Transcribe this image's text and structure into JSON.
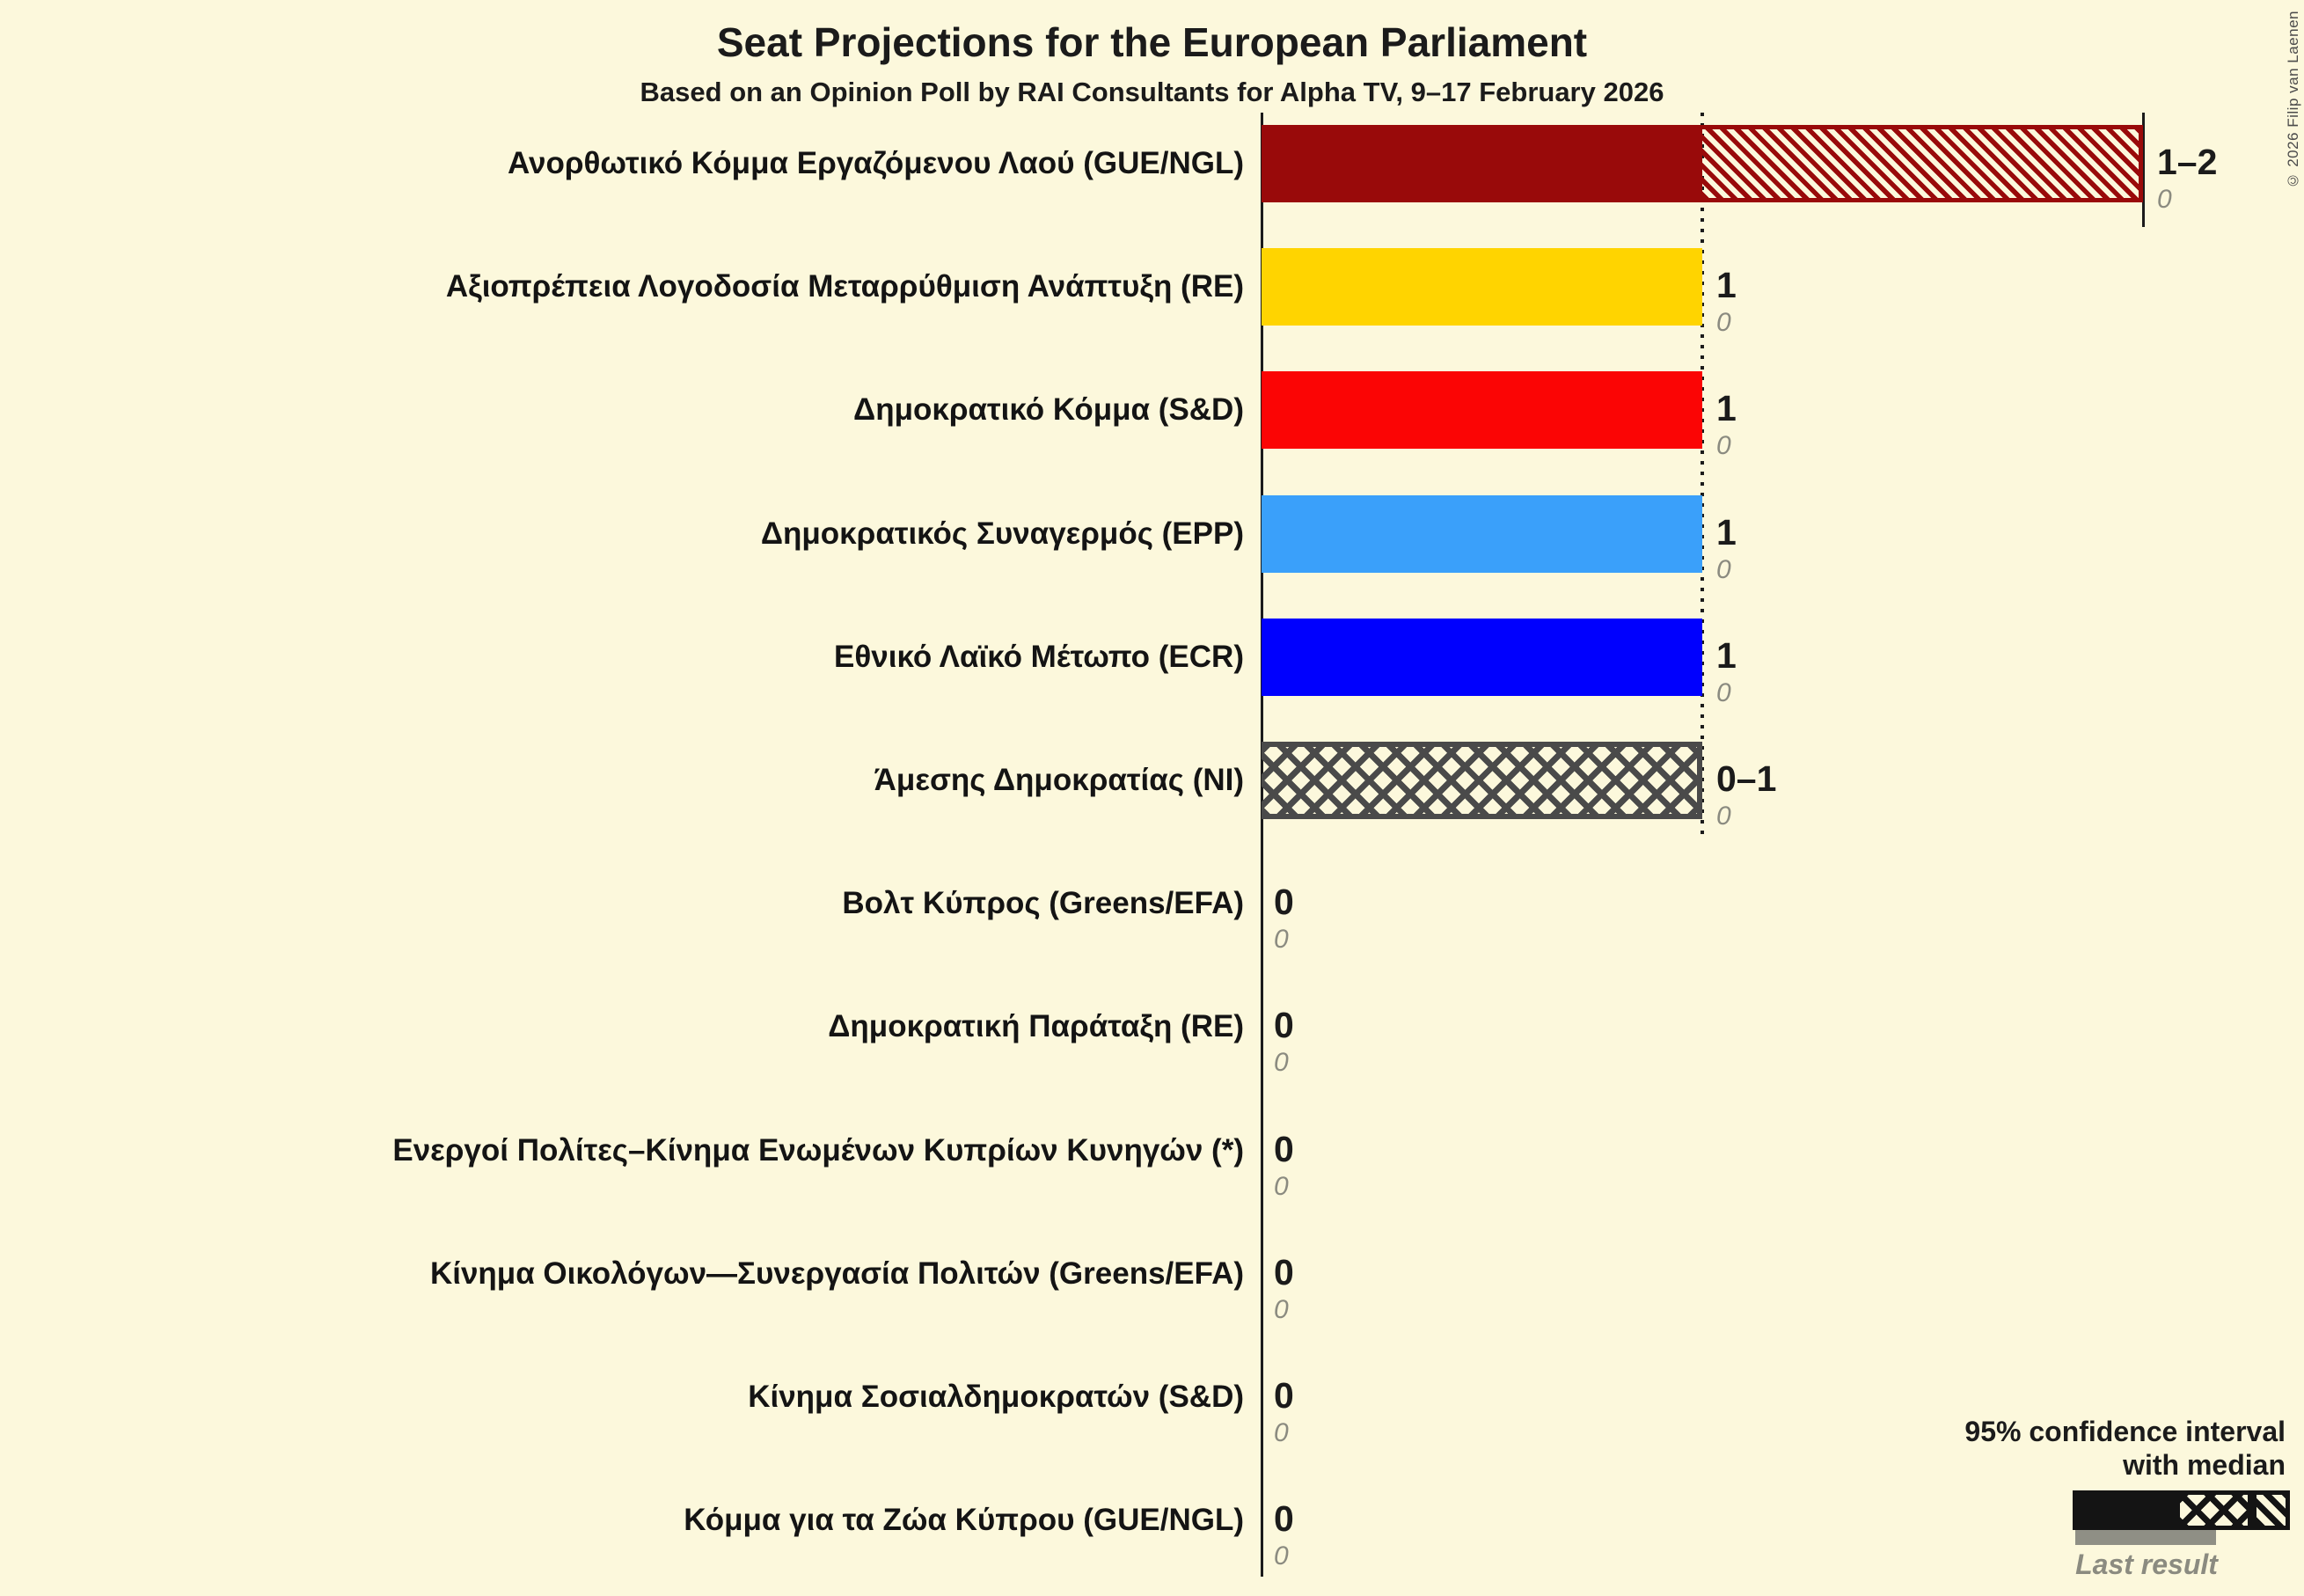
{
  "title": "Seat Projections for the European Parliament",
  "subtitle": "Based on an Opinion Poll by RAI Consultants for Alpha TV, 9–17 February 2026",
  "copyright": "© 2026 Filip van Laenen",
  "colors": {
    "background": "#FCF8DC",
    "axis": "#1b1b1b",
    "last_result_gray": "#8B8B80",
    "legend_sample": "#141414",
    "legend_last_bar": "#8F8F85"
  },
  "legend": {
    "ci_line1": "95% confidence interval",
    "ci_line2": "with median",
    "last_result": "Last result"
  },
  "chart_data": {
    "type": "bar",
    "orientation": "horizontal",
    "title": "Seat Projections for the European Parliament",
    "x_axis": {
      "min": 0,
      "max": 2,
      "gridline_at": 1,
      "unit": "seats",
      "gridlines_visible": true
    },
    "encoding": {
      "solid": "seats below lower bound of 95% CI",
      "crosshatch": "lower bound to median",
      "diagonal_hatch": "median to upper bound",
      "gray_italic_number": "last result"
    },
    "parties": [
      {
        "label": "Ανορθωτικό Κόμμα Εργαζόμενου Λαού (GUE/NGL)",
        "ci_text": "1–2",
        "last_result_text": "0",
        "low": 1,
        "median": 1,
        "high": 2,
        "last_result": 0,
        "color": "#990A0A"
      },
      {
        "label": "Αξιοπρέπεια Λογοδοσία Μεταρρύθμιση Ανάπτυξη (RE)",
        "ci_text": "1",
        "last_result_text": "0",
        "low": 1,
        "median": 1,
        "high": 1,
        "last_result": 0,
        "color": "#FFD400"
      },
      {
        "label": "Δημοκρατικό Κόμμα (S&D)",
        "ci_text": "1",
        "last_result_text": "0",
        "low": 1,
        "median": 1,
        "high": 1,
        "last_result": 0,
        "color": "#FB0505"
      },
      {
        "label": "Δημοκρατικός Συναγερμός (EPP)",
        "ci_text": "1",
        "last_result_text": "0",
        "low": 1,
        "median": 1,
        "high": 1,
        "last_result": 0,
        "color": "#3AA0FA"
      },
      {
        "label": "Εθνικό Λαϊκό Μέτωπο (ECR)",
        "ci_text": "1",
        "last_result_text": "0",
        "low": 1,
        "median": 1,
        "high": 1,
        "last_result": 0,
        "color": "#0000FE"
      },
      {
        "label": "Άμεσης Δημοκρατίας (NI)",
        "ci_text": "0–1",
        "last_result_text": "0",
        "low": 0,
        "median": 1,
        "high": 1,
        "last_result": 0,
        "color": "#4A4A4A"
      },
      {
        "label": "Βολτ Κύπρος (Greens/EFA)",
        "ci_text": "0",
        "last_result_text": "0",
        "low": 0,
        "median": 0,
        "high": 0,
        "last_result": 0,
        "color": "#502379"
      },
      {
        "label": "Δημοκρατική Παράταξη (RE)",
        "ci_text": "0",
        "last_result_text": "0",
        "low": 0,
        "median": 0,
        "high": 0,
        "last_result": 0,
        "color": "#1D6FC0"
      },
      {
        "label": "Ενεργοί Πολίτες–Κίνημα Ενωμένων Κυπρίων Κυνηγών (*)",
        "ci_text": "0",
        "last_result_text": "0",
        "low": 0,
        "median": 0,
        "high": 0,
        "last_result": 0,
        "color": "#777777"
      },
      {
        "label": "Κίνημα Οικολόγων—Συνεργασία Πολιτών (Greens/EFA)",
        "ci_text": "0",
        "last_result_text": "0",
        "low": 0,
        "median": 0,
        "high": 0,
        "last_result": 0,
        "color": "#2E8B2E"
      },
      {
        "label": "Κίνημα Σοσιαλδημοκρατών (S&D)",
        "ci_text": "0",
        "last_result_text": "0",
        "low": 0,
        "median": 0,
        "high": 0,
        "last_result": 0,
        "color": "#C01010"
      },
      {
        "label": "Κόμμα για τα Ζώα Κύπρου (GUE/NGL)",
        "ci_text": "0",
        "last_result_text": "0",
        "low": 0,
        "median": 0,
        "high": 0,
        "last_result": 0,
        "color": "#6B4423"
      }
    ]
  }
}
